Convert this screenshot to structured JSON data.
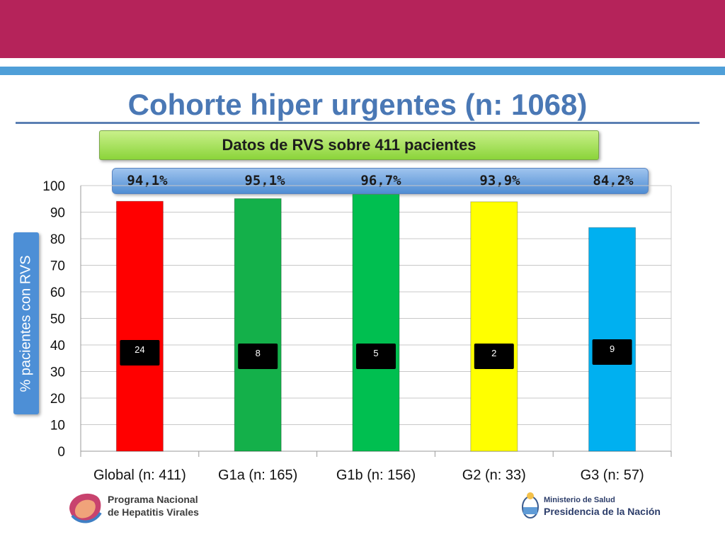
{
  "header": {
    "title": "Cohorte hiper urgentes (n: 1068)"
  },
  "subtitle": "Datos de RVS sobre 411 pacientes",
  "percentages": [
    "94,1%",
    "95,1%",
    "96,7%",
    "93,9%",
    "84,2%"
  ],
  "colors": {
    "top_band": "#b5235a",
    "stripe": "#4f9fd8",
    "title": "#4a78b5",
    "bars": [
      "#ff0000",
      "#14b04a",
      "#00bf50",
      "#ffff00",
      "#00b0f0"
    ]
  },
  "chart_data": {
    "type": "bar",
    "categories": [
      "Global (n: 411)",
      "G1a (n: 165)",
      "G1b (n: 156)",
      "G2 (n: 33)",
      "G3 (n: 57)"
    ],
    "values": [
      94.1,
      95.1,
      96.7,
      93.9,
      84.2
    ],
    "bar_labels": [
      "24",
      "8",
      "5",
      "2",
      "9"
    ],
    "ylabel": "% pacientes con RVS",
    "ylim": [
      0,
      100
    ],
    "yticks": [
      0,
      10,
      20,
      30,
      40,
      50,
      60,
      70,
      80,
      90,
      100
    ],
    "grid": true
  },
  "footer": {
    "program_line1": "Programa Nacional",
    "program_line2": "de Hepatitis Virales",
    "ministry_line1": "Ministerio de Salud",
    "ministry_line2": "Presidencia de la Nación"
  }
}
